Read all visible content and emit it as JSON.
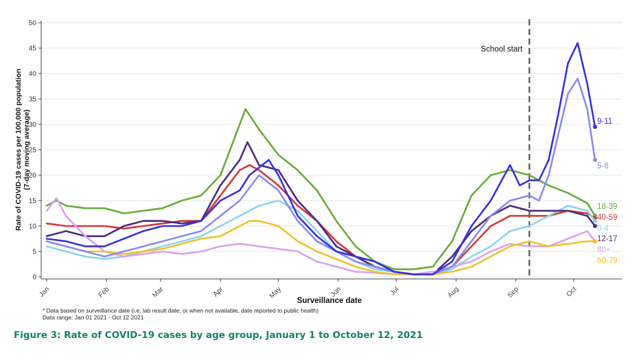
{
  "chart_data": {
    "type": "line",
    "title": "",
    "xlabel": "Surveillance date",
    "ylabel": "Rate of COVID-19 cases per 100,000 population (7-day moving average)",
    "ylabel_lines": [
      "Rate of COVID-19 cases per 100,000 population",
      "(7-day moving average)"
    ],
    "x_unit": "day of year 2021 (0 = Jan 1)",
    "xlim": [
      0,
      300
    ],
    "ylim": [
      0,
      50
    ],
    "yticks": [
      0,
      5,
      10,
      15,
      20,
      25,
      30,
      35,
      40,
      45,
      50
    ],
    "xticks": [
      {
        "label": "Jan",
        "day": 0
      },
      {
        "label": "Feb",
        "day": 31
      },
      {
        "label": "Mar",
        "day": 59
      },
      {
        "label": "Apr",
        "day": 90
      },
      {
        "label": "May",
        "day": 120
      },
      {
        "label": "Jun",
        "day": 151
      },
      {
        "label": "Jul",
        "day": 181
      },
      {
        "label": "Aug",
        "day": 212
      },
      {
        "label": "Sep",
        "day": 243
      },
      {
        "label": "Oct",
        "day": 273
      }
    ],
    "grid": "horizontal",
    "annotation": {
      "label": "School start",
      "day": 250
    },
    "series": [
      {
        "name": "18-39",
        "color": "#6aab3a",
        "points": [
          [
            0,
            14
          ],
          [
            5,
            15
          ],
          [
            10,
            14
          ],
          [
            20,
            13.5
          ],
          [
            30,
            13.5
          ],
          [
            40,
            12.5
          ],
          [
            50,
            13
          ],
          [
            60,
            13.5
          ],
          [
            70,
            15
          ],
          [
            80,
            16
          ],
          [
            90,
            20
          ],
          [
            100,
            30
          ],
          [
            103,
            33
          ],
          [
            110,
            29
          ],
          [
            120,
            24
          ],
          [
            130,
            21
          ],
          [
            140,
            17
          ],
          [
            150,
            11
          ],
          [
            160,
            6
          ],
          [
            170,
            3
          ],
          [
            180,
            1.5
          ],
          [
            190,
            1.5
          ],
          [
            200,
            2
          ],
          [
            210,
            7
          ],
          [
            220,
            16
          ],
          [
            230,
            20
          ],
          [
            240,
            21
          ],
          [
            250,
            20
          ],
          [
            260,
            18
          ],
          [
            270,
            16.5
          ],
          [
            280,
            14.5
          ],
          [
            284,
            12
          ]
        ]
      },
      {
        "name": "40-59",
        "color": "#d23a3a",
        "points": [
          [
            0,
            10.5
          ],
          [
            10,
            10
          ],
          [
            20,
            10
          ],
          [
            30,
            10
          ],
          [
            40,
            9.5
          ],
          [
            50,
            10
          ],
          [
            60,
            10.5
          ],
          [
            70,
            11
          ],
          [
            80,
            11
          ],
          [
            90,
            16
          ],
          [
            100,
            21
          ],
          [
            105,
            22
          ],
          [
            110,
            21
          ],
          [
            120,
            18
          ],
          [
            130,
            14
          ],
          [
            140,
            11
          ],
          [
            150,
            7
          ],
          [
            160,
            4
          ],
          [
            170,
            2
          ],
          [
            180,
            1
          ],
          [
            190,
            0.5
          ],
          [
            200,
            0.5
          ],
          [
            210,
            2
          ],
          [
            220,
            6
          ],
          [
            230,
            10
          ],
          [
            240,
            12
          ],
          [
            250,
            12
          ],
          [
            260,
            12
          ],
          [
            270,
            13
          ],
          [
            280,
            12.5
          ],
          [
            284,
            11.5
          ]
        ]
      },
      {
        "name": "0-4",
        "color": "#8fd3ef",
        "points": [
          [
            0,
            6
          ],
          [
            10,
            5
          ],
          [
            20,
            4
          ],
          [
            30,
            3.5
          ],
          [
            40,
            4
          ],
          [
            50,
            5
          ],
          [
            60,
            6
          ],
          [
            70,
            7
          ],
          [
            80,
            8
          ],
          [
            90,
            10
          ],
          [
            100,
            12
          ],
          [
            110,
            14
          ],
          [
            120,
            15
          ],
          [
            130,
            13
          ],
          [
            140,
            9
          ],
          [
            150,
            5
          ],
          [
            160,
            3
          ],
          [
            170,
            1.5
          ],
          [
            180,
            1
          ],
          [
            190,
            0.5
          ],
          [
            200,
            0.5
          ],
          [
            210,
            1.5
          ],
          [
            220,
            4
          ],
          [
            230,
            6
          ],
          [
            240,
            9
          ],
          [
            250,
            10
          ],
          [
            260,
            12
          ],
          [
            270,
            14
          ],
          [
            280,
            13
          ],
          [
            284,
            11
          ]
        ]
      },
      {
        "name": "12-17",
        "color": "#4b2d7f",
        "points": [
          [
            0,
            8
          ],
          [
            10,
            9
          ],
          [
            20,
            8
          ],
          [
            30,
            8
          ],
          [
            40,
            10
          ],
          [
            50,
            11
          ],
          [
            60,
            11
          ],
          [
            70,
            10.5
          ],
          [
            80,
            11
          ],
          [
            90,
            18
          ],
          [
            100,
            23
          ],
          [
            104,
            26.5
          ],
          [
            110,
            22
          ],
          [
            120,
            21
          ],
          [
            130,
            15
          ],
          [
            140,
            11
          ],
          [
            150,
            6
          ],
          [
            160,
            4
          ],
          [
            170,
            2
          ],
          [
            180,
            1
          ],
          [
            190,
            0.5
          ],
          [
            200,
            0.5
          ],
          [
            210,
            4
          ],
          [
            220,
            9
          ],
          [
            230,
            12
          ],
          [
            240,
            14
          ],
          [
            250,
            13
          ],
          [
            260,
            13
          ],
          [
            270,
            13
          ],
          [
            280,
            12
          ],
          [
            284,
            10
          ]
        ]
      },
      {
        "name": "80+",
        "color": "#d9a3f0",
        "points": [
          [
            0,
            13
          ],
          [
            5,
            15.5
          ],
          [
            10,
            12
          ],
          [
            20,
            8
          ],
          [
            30,
            5
          ],
          [
            40,
            4
          ],
          [
            50,
            4.5
          ],
          [
            60,
            5
          ],
          [
            70,
            4.5
          ],
          [
            80,
            5
          ],
          [
            90,
            6
          ],
          [
            100,
            6.5
          ],
          [
            110,
            6
          ],
          [
            120,
            5.5
          ],
          [
            130,
            5
          ],
          [
            140,
            3
          ],
          [
            150,
            2
          ],
          [
            160,
            1
          ],
          [
            170,
            0.8
          ],
          [
            180,
            0.5
          ],
          [
            190,
            0.5
          ],
          [
            200,
            1
          ],
          [
            210,
            2
          ],
          [
            220,
            3
          ],
          [
            230,
            5
          ],
          [
            240,
            6.5
          ],
          [
            250,
            6
          ],
          [
            260,
            6
          ],
          [
            270,
            7.5
          ],
          [
            280,
            9
          ],
          [
            284,
            7
          ]
        ]
      },
      {
        "name": "60-79",
        "color": "#f2c12e",
        "points": [
          [
            0,
            7
          ],
          [
            10,
            6
          ],
          [
            20,
            5
          ],
          [
            30,
            5
          ],
          [
            40,
            4.5
          ],
          [
            50,
            5
          ],
          [
            60,
            5.5
          ],
          [
            70,
            6.5
          ],
          [
            80,
            7.5
          ],
          [
            90,
            8
          ],
          [
            100,
            10
          ],
          [
            105,
            11
          ],
          [
            110,
            11
          ],
          [
            120,
            10
          ],
          [
            130,
            7
          ],
          [
            140,
            5
          ],
          [
            150,
            3.5
          ],
          [
            160,
            2
          ],
          [
            170,
            1
          ],
          [
            180,
            0.5
          ],
          [
            190,
            0.5
          ],
          [
            200,
            0.5
          ],
          [
            210,
            1
          ],
          [
            220,
            2
          ],
          [
            230,
            4
          ],
          [
            240,
            6
          ],
          [
            250,
            7
          ],
          [
            260,
            6
          ],
          [
            270,
            6.5
          ],
          [
            280,
            7
          ],
          [
            284,
            7
          ]
        ]
      },
      {
        "name": "5-8",
        "color": "#8a8cf0",
        "points": [
          [
            0,
            7
          ],
          [
            10,
            6
          ],
          [
            20,
            5
          ],
          [
            30,
            4
          ],
          [
            40,
            5
          ],
          [
            50,
            6
          ],
          [
            60,
            7
          ],
          [
            70,
            8
          ],
          [
            80,
            9
          ],
          [
            90,
            12
          ],
          [
            100,
            15
          ],
          [
            110,
            20
          ],
          [
            120,
            17
          ],
          [
            130,
            11
          ],
          [
            140,
            7
          ],
          [
            150,
            5
          ],
          [
            160,
            3
          ],
          [
            170,
            2
          ],
          [
            180,
            1
          ],
          [
            190,
            0.5
          ],
          [
            200,
            0.5
          ],
          [
            210,
            2
          ],
          [
            220,
            7
          ],
          [
            230,
            12
          ],
          [
            240,
            15
          ],
          [
            250,
            16
          ],
          [
            255,
            15
          ],
          [
            260,
            20
          ],
          [
            265,
            28
          ],
          [
            270,
            36
          ],
          [
            275,
            39
          ],
          [
            280,
            33
          ],
          [
            284,
            23
          ]
        ]
      },
      {
        "name": "9-11",
        "color": "#3a30e0",
        "points": [
          [
            0,
            7.5
          ],
          [
            10,
            7
          ],
          [
            20,
            6
          ],
          [
            30,
            6
          ],
          [
            40,
            7.5
          ],
          [
            50,
            9
          ],
          [
            60,
            10
          ],
          [
            70,
            10
          ],
          [
            80,
            11
          ],
          [
            90,
            15
          ],
          [
            100,
            17
          ],
          [
            105,
            20
          ],
          [
            115,
            23
          ],
          [
            120,
            20
          ],
          [
            130,
            12
          ],
          [
            140,
            8
          ],
          [
            150,
            5
          ],
          [
            160,
            4
          ],
          [
            170,
            3
          ],
          [
            180,
            1
          ],
          [
            190,
            0.5
          ],
          [
            200,
            0.5
          ],
          [
            210,
            3
          ],
          [
            220,
            10
          ],
          [
            230,
            15
          ],
          [
            240,
            22
          ],
          [
            245,
            18
          ],
          [
            250,
            19
          ],
          [
            255,
            19
          ],
          [
            260,
            23
          ],
          [
            265,
            32
          ],
          [
            270,
            42
          ],
          [
            275,
            46
          ],
          [
            280,
            38
          ],
          [
            284,
            29.5
          ]
        ]
      }
    ]
  },
  "footnote": "* Data based on surveillance date (i.e. lab result date, or when not available, date reported to public health)",
  "data_range": "Data range: Jan 01 2021 - Oct 12 2021",
  "caption": "Figure 3: Rate of COVID-19 cases by age group, January 1 to October 12, 2021"
}
